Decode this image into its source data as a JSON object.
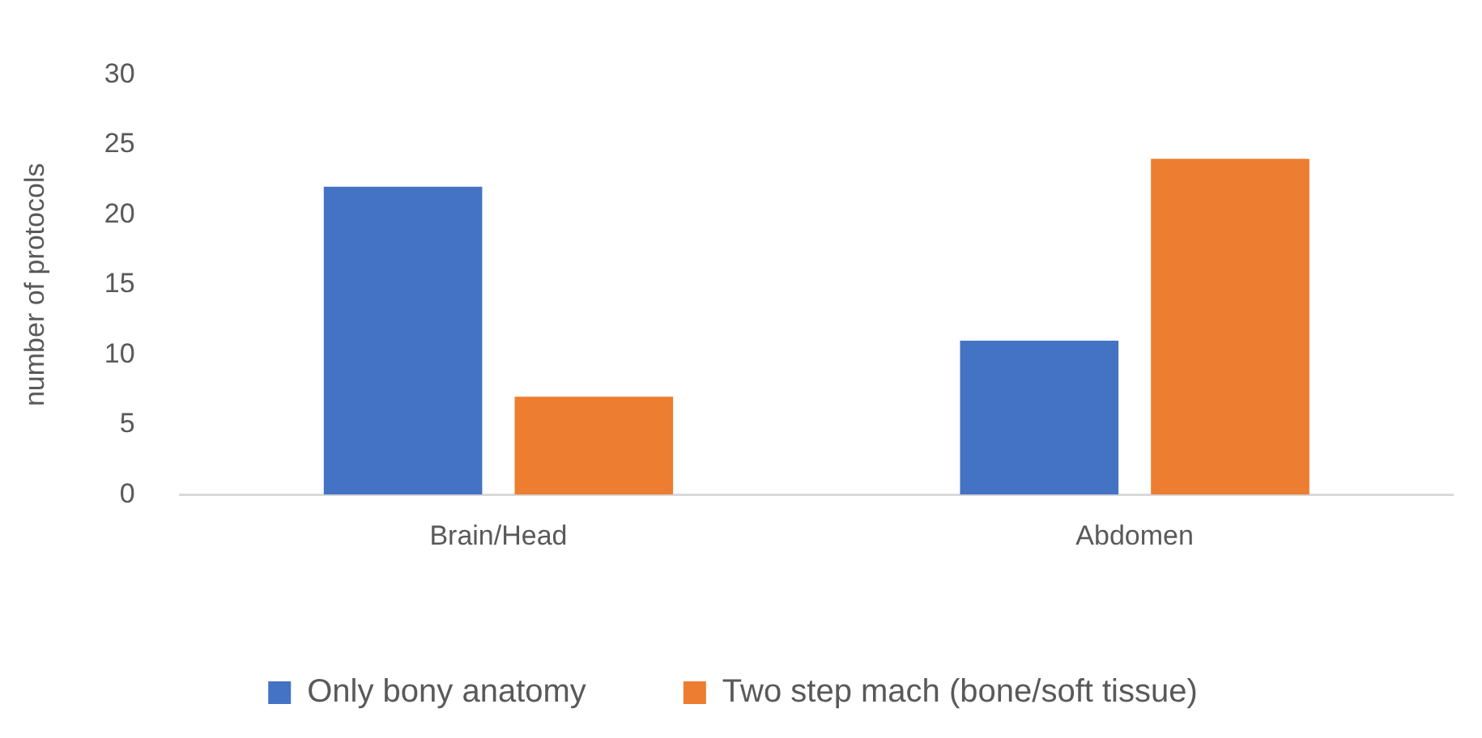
{
  "chart_data": {
    "type": "bar",
    "ylabel": "number of protocols",
    "categories": [
      "Brain/Head",
      "Abdomen"
    ],
    "series": [
      {
        "name": "Only bony anatomy",
        "color": "#4472c4",
        "values": [
          22,
          11
        ]
      },
      {
        "name": "Two step mach (bone/soft tissue)",
        "color": "#ed7d31",
        "values": [
          7,
          24
        ]
      }
    ],
    "ylim": [
      0,
      30
    ],
    "yticks": [
      0,
      5,
      10,
      15,
      20,
      25,
      30
    ],
    "grid": false,
    "legend": "bottom"
  }
}
